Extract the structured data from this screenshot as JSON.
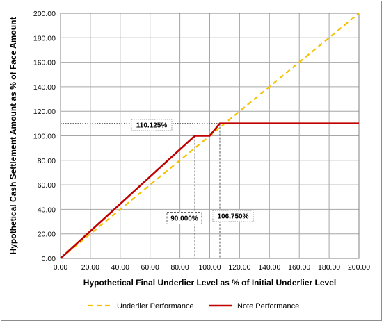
{
  "chart_data": {
    "type": "line",
    "xlabel": "Hypothetical Final Underlier Level as % of Initial Underlier Level",
    "ylabel": "Hypothetical Cash Settlement Amount as % of Face Amount",
    "xlim": [
      0,
      200
    ],
    "ylim": [
      0,
      200
    ],
    "x_ticks": [
      "0.00",
      "20.00",
      "40.00",
      "60.00",
      "80.00",
      "100.00",
      "120.00",
      "140.00",
      "160.00",
      "180.00",
      "200.00"
    ],
    "y_ticks": [
      "0.00",
      "20.00",
      "40.00",
      "60.00",
      "80.00",
      "100.00",
      "120.00",
      "140.00",
      "160.00",
      "180.00",
      "200.00"
    ],
    "grid": true,
    "legend_position": "bottom",
    "series": [
      {
        "name": "Underlier Performance",
        "color": "#F5C000",
        "style": "dashed",
        "x": [
          0,
          200
        ],
        "y": [
          0,
          200
        ]
      },
      {
        "name": "Note Performance",
        "color": "#C00000",
        "style": "solid",
        "x": [
          0,
          90,
          100,
          106.75,
          200
        ],
        "y": [
          0,
          100,
          100,
          110.125,
          110.125
        ]
      }
    ],
    "annotations": [
      {
        "label": "110.125%",
        "kind": "y",
        "value": 110.125
      },
      {
        "label": "90.000%",
        "kind": "x",
        "value": 90
      },
      {
        "label": "106.750%",
        "kind": "x",
        "value": 106.75
      }
    ]
  }
}
